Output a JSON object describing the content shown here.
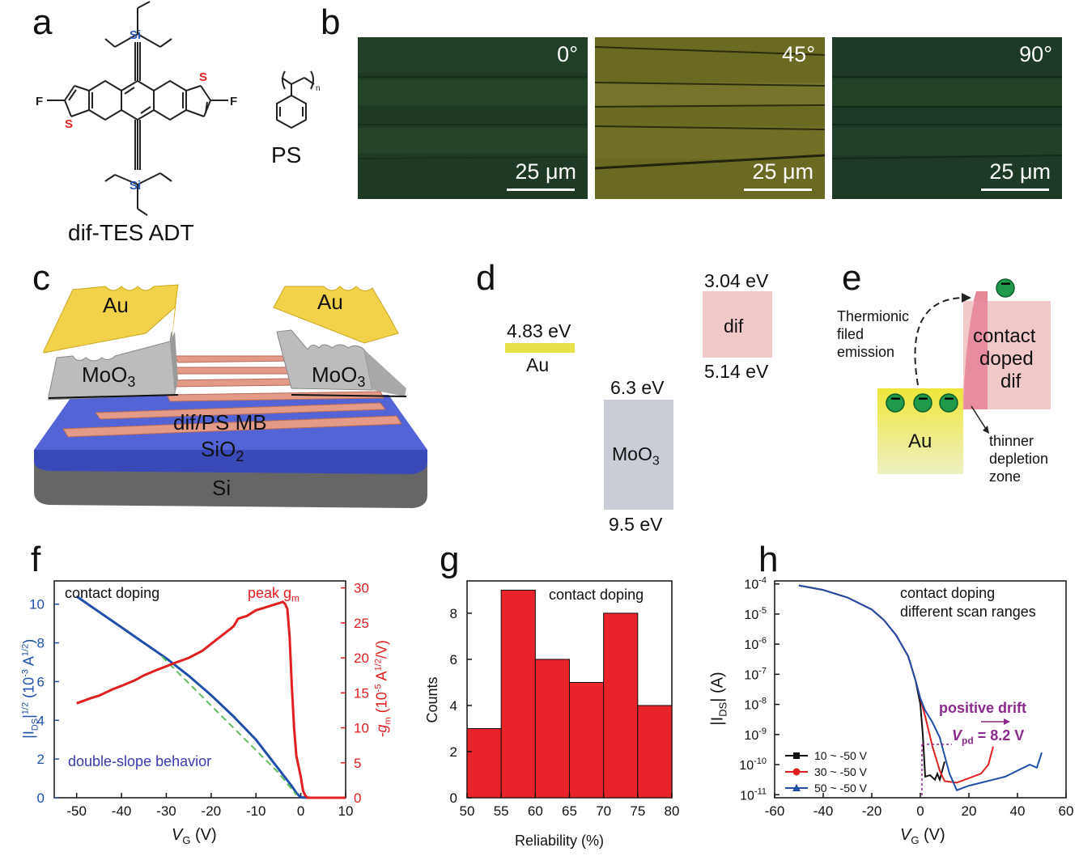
{
  "panels": {
    "a": {
      "label": "a",
      "molecule_name": "dif-TES ADT",
      "polymer_name": "PS",
      "atoms": {
        "si": "Si",
        "s": "S",
        "f": "F",
        "n": "n"
      }
    },
    "b": {
      "label": "b",
      "images": [
        {
          "angle": "0°",
          "scale": "25 μm",
          "color": "#1f3a24"
        },
        {
          "angle": "45°",
          "scale": "25 μm",
          "color": "#6b6a22"
        },
        {
          "angle": "90°",
          "scale": "25 μm",
          "color": "#1d3a26"
        }
      ]
    },
    "c": {
      "label": "c",
      "au_left": "Au",
      "au_right": "Au",
      "moo3_left": "MoO",
      "moo3_right": "MoO",
      "sub3": "3",
      "mb": "dif/PS MB",
      "sio2": "SiO",
      "sub2": "2",
      "si": "Si"
    },
    "d": {
      "label": "d",
      "au_level": "4.83 eV",
      "au_name": "Au",
      "moo3_top": "6.3 eV",
      "moo3_name": "MoO",
      "moo3_sub": "3",
      "moo3_bottom": "9.5 eV",
      "dif_top": "3.04 eV",
      "dif_name": "dif",
      "dif_bottom": "5.14 eV",
      "colors": {
        "au": "#e6e04a",
        "moo3": "#c9ced6",
        "dif": "#f2c9c9"
      }
    },
    "e": {
      "label": "e",
      "thermionic": [
        "Thermionic",
        "filed",
        "emission"
      ],
      "contact": [
        "contact",
        "doped",
        "dif"
      ],
      "au": "Au",
      "depletion": [
        "thinner",
        "depletion",
        "zone"
      ],
      "minus": "−"
    },
    "f": {
      "label": "f",
      "annot_contact": "contact doping",
      "annot_peak": "peak g",
      "annot_peak_sub": "m",
      "annot_double": "double-slope behavior",
      "ylabel_left": "|I",
      "ylabel_left_sub": "DS",
      "ylabel_left_rest": "|",
      "ylabel_left_sup": "1/2",
      "ylabel_left_units": "(10",
      "ylabel_left_units_sup": "-3",
      "ylabel_left_units_rest": " A",
      "ylabel_left_units_sup2": "1/2",
      "ylabel_left_units_end": ")",
      "ylabel_right": "-g",
      "ylabel_right_sub": "m",
      "ylabel_right_units": " (10",
      "ylabel_right_units_sup": "-5",
      "ylabel_right_units_rest": " A",
      "ylabel_right_units_sup2": "1/2",
      "ylabel_right_units_end": "/V)",
      "xlabel": "V",
      "xlabel_sub": "G",
      "xlabel_units": " (V)"
    },
    "g": {
      "label": "g",
      "annot": "contact doping",
      "xlabel": "Reliability (%)",
      "ylabel": "Counts"
    },
    "h": {
      "label": "h",
      "annot1": "contact doping",
      "annot2": "different scan ranges",
      "drift": "positive drift",
      "vpd": "V",
      "vpd_sub": "pd",
      "vpd_val": " = 8.2 V",
      "ylabel": "|I",
      "ylabel_sub": "DS",
      "ylabel_rest": "| (A)",
      "xlabel": "V",
      "xlabel_sub": "G",
      "xlabel_units": " (V)"
    }
  },
  "chart_data": [
    {
      "id": "f",
      "type": "line",
      "x_ticks": [
        -50,
        -40,
        -30,
        -20,
        -10,
        0,
        10
      ],
      "xlim": [
        -55,
        10
      ],
      "y_left_ticks": [
        0,
        2,
        4,
        6,
        8,
        10
      ],
      "ylim_left": [
        0,
        11.2
      ],
      "y_right_ticks": [
        0,
        5,
        10,
        15,
        20,
        25,
        30
      ],
      "ylim_right": [
        0,
        31
      ],
      "series": [
        {
          "axis": "left",
          "color": "#1f4fa8",
          "x": [
            -50,
            -45,
            -40,
            -35,
            -30,
            -25,
            -20,
            -15,
            -10,
            -7,
            -5,
            -3,
            -2,
            -1,
            0,
            2,
            5,
            10
          ],
          "y": [
            10.4,
            9.6,
            8.8,
            8.0,
            7.2,
            6.3,
            5.3,
            4.2,
            3.0,
            2.1,
            1.5,
            0.9,
            0.6,
            0.25,
            0.02,
            0.0,
            0.0,
            0.0
          ]
        },
        {
          "axis": "left",
          "style": "dashed",
          "color": "#5fbf5f",
          "x": [
            -31,
            -5,
            -1
          ],
          "y": [
            7.3,
            1.3,
            0.15
          ]
        },
        {
          "axis": "right",
          "color": "#e02020",
          "x": [
            -50,
            -47,
            -45,
            -42,
            -40,
            -37,
            -35,
            -32,
            -30,
            -28,
            -25,
            -22,
            -20,
            -18,
            -15,
            -14,
            -12,
            -10,
            -8,
            -5,
            -4,
            -3.5,
            -3,
            -2.5,
            -2,
            -1.5,
            -1,
            0,
            0.5,
            1,
            1.5,
            3,
            6,
            10
          ],
          "y": [
            13.5,
            14.2,
            14.6,
            15.5,
            16.0,
            16.8,
            17.5,
            18.3,
            18.8,
            19.3,
            20.0,
            21.0,
            22.0,
            23.0,
            24.5,
            25.6,
            26.0,
            26.8,
            27.2,
            27.8,
            28.0,
            27.7,
            27.0,
            23.0,
            16.0,
            10.0,
            6.0,
            3.0,
            1.0,
            0.3,
            0.0,
            0.0,
            0.0,
            0.0
          ]
        }
      ]
    },
    {
      "id": "g",
      "type": "bar",
      "categories": [
        "50-55",
        "55-60",
        "60-65",
        "65-70",
        "70-75",
        "75-80"
      ],
      "bin_edges": [
        50,
        55,
        60,
        65,
        70,
        75,
        80
      ],
      "values": [
        3,
        9,
        6,
        5,
        8,
        4
      ],
      "x_ticks": [
        50,
        55,
        60,
        65,
        70,
        75,
        80
      ],
      "y_ticks": [
        0,
        2,
        4,
        6,
        8
      ],
      "ylim": [
        0,
        9.4
      ],
      "bar_color": "#e8232a"
    },
    {
      "id": "h",
      "type": "line",
      "yscale": "log",
      "x_ticks": [
        -60,
        -40,
        -20,
        0,
        20,
        40,
        60
      ],
      "xlim": [
        -60,
        60
      ],
      "y_ticks": [
        "10^-4",
        "10^-5",
        "10^-6",
        "10^-7",
        "10^-8",
        "10^-9",
        "10^-10",
        "10^-11"
      ],
      "ylim_exp": [
        -11.1,
        -3.9
      ],
      "series": [
        {
          "name": "10 ~ -50 V",
          "color": "#111111",
          "marker": "square",
          "x": [
            -50,
            -40,
            -30,
            -20,
            -15,
            -10,
            -5,
            -2,
            0,
            1,
            2,
            4,
            6,
            7,
            8,
            9,
            10
          ],
          "y_exp": [
            -4.05,
            -4.2,
            -4.45,
            -4.85,
            -5.2,
            -5.7,
            -6.4,
            -7.2,
            -8.0,
            -9.0,
            -10.4,
            -10.35,
            -10.5,
            -10.3,
            -10.5,
            -10.2,
            -9.9
          ]
        },
        {
          "name": "30 ~ -50 V",
          "color": "#e02020",
          "marker": "circle",
          "x": [
            -50,
            -40,
            -30,
            -20,
            -15,
            -10,
            -5,
            -2,
            0,
            2,
            5,
            8,
            10,
            15,
            20,
            25,
            28,
            30
          ],
          "y_exp": [
            -4.05,
            -4.2,
            -4.45,
            -4.85,
            -5.2,
            -5.7,
            -6.4,
            -7.2,
            -7.8,
            -8.4,
            -9.4,
            -10.2,
            -10.55,
            -10.6,
            -10.45,
            -10.3,
            -10.0,
            -9.4
          ]
        },
        {
          "name": "50 ~ -50 V",
          "color": "#1f4fa8",
          "marker": "triangle",
          "x": [
            -50,
            -40,
            -30,
            -20,
            -15,
            -10,
            -5,
            -2,
            0,
            2,
            5,
            8,
            10,
            12,
            15,
            20,
            25,
            30,
            35,
            40,
            45,
            48,
            50
          ],
          "y_exp": [
            -4.05,
            -4.2,
            -4.45,
            -4.85,
            -5.2,
            -5.7,
            -6.4,
            -7.2,
            -7.8,
            -8.2,
            -8.6,
            -9.1,
            -9.7,
            -10.3,
            -10.85,
            -10.7,
            -10.6,
            -10.5,
            -10.4,
            -10.2,
            -10.0,
            -10.1,
            -9.6
          ]
        }
      ]
    }
  ]
}
